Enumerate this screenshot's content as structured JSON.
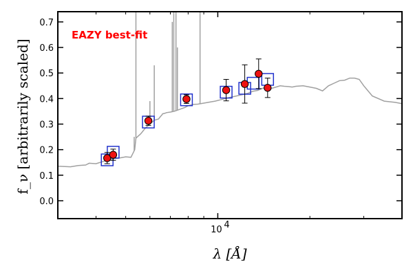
{
  "chart_data": {
    "type": "scatter",
    "title": "",
    "xlabel": "λ [Å]",
    "ylabel": "f_ν [arbitrarily scaled]",
    "x_scale": "log",
    "xlim": [
      3000,
      40000
    ],
    "ylim": [
      -0.07,
      0.74
    ],
    "x_tick_labels": [
      {
        "value": 10000,
        "base": "10",
        "exp": "4"
      }
    ],
    "y_ticks": [
      0.0,
      0.1,
      0.2,
      0.3,
      0.4,
      0.5,
      0.6,
      0.7
    ],
    "y_tick_labels": [
      "0.0",
      "0.1",
      "0.2",
      "0.3",
      "0.4",
      "0.5",
      "0.6",
      "0.7"
    ],
    "annotations": [
      {
        "text": "EAZY best-fit",
        "color": "#ff0000",
        "position": "top-left"
      }
    ],
    "colors": {
      "template": "#a0a0a0",
      "observed_fill": "#ee1111",
      "model_box": "#2233cc"
    },
    "series": [
      {
        "kind": "template",
        "x": [
          3000,
          3300,
          3500,
          3700,
          3800,
          4000,
          4200,
          4400,
          4600,
          4800,
          5000,
          5200,
          5300,
          5350,
          5400,
          5600,
          5800,
          6000,
          6200,
          6400,
          6500,
          6560,
          6580,
          6600,
          6700,
          6800,
          7000,
          7200,
          7400,
          7600,
          7800,
          8000,
          8300,
          8600,
          9000,
          9400,
          9800,
          10200,
          10600,
          11000,
          11500,
          12000,
          12500,
          13000,
          13500,
          14000,
          14500,
          15000,
          15500,
          16000,
          16500,
          17000,
          17500,
          18000,
          19000,
          20000,
          21000,
          22000,
          23000,
          24000,
          25000,
          26000,
          27000,
          28000,
          29000,
          30000,
          32000,
          35000,
          38000,
          40000
        ],
        "y": [
          0.135,
          0.133,
          0.138,
          0.14,
          0.147,
          0.145,
          0.153,
          0.16,
          0.165,
          0.168,
          0.172,
          0.17,
          0.19,
          0.2,
          0.245,
          0.262,
          0.285,
          0.3,
          0.315,
          0.32,
          0.33,
          0.335,
          0.338,
          0.34,
          0.342,
          0.345,
          0.347,
          0.35,
          0.355,
          0.36,
          0.365,
          0.372,
          0.377,
          0.378,
          0.382,
          0.386,
          0.39,
          0.395,
          0.4,
          0.405,
          0.41,
          0.415,
          0.42,
          0.428,
          0.432,
          0.44,
          0.445,
          0.44,
          0.445,
          0.45,
          0.448,
          0.447,
          0.445,
          0.448,
          0.45,
          0.445,
          0.44,
          0.43,
          0.45,
          0.46,
          0.47,
          0.472,
          0.48,
          0.48,
          0.475,
          0.45,
          0.41,
          0.39,
          0.385,
          0.38
        ],
        "emission_lines": [
          {
            "x": 5330,
            "peak": 0.25
          },
          {
            "x": 5400,
            "peak": 0.74
          },
          {
            "x": 6000,
            "peak": 0.39
          },
          {
            "x": 6200,
            "peak": 0.53
          },
          {
            "x": 7100,
            "peak": 0.7
          },
          {
            "x": 7180,
            "peak": 0.74
          },
          {
            "x": 7300,
            "peak": 0.74
          },
          {
            "x": 7380,
            "peak": 0.6
          },
          {
            "x": 8750,
            "peak": 0.74
          }
        ]
      },
      {
        "kind": "observed",
        "x": [
          4350,
          4550,
          5930,
          7900,
          10650,
          12250,
          13600,
          14550
        ],
        "y": [
          0.167,
          0.18,
          0.313,
          0.398,
          0.433,
          0.457,
          0.497,
          0.442
        ],
        "yerr": [
          0.022,
          0.022,
          0.018,
          0.017,
          0.042,
          0.075,
          0.058,
          0.038
        ]
      },
      {
        "kind": "model",
        "x": [
          4350,
          4550,
          5930,
          7900,
          10650,
          12250,
          13050,
          14550
        ],
        "y": [
          0.16,
          0.19,
          0.308,
          0.395,
          0.425,
          0.44,
          0.46,
          0.475
        ]
      }
    ]
  }
}
